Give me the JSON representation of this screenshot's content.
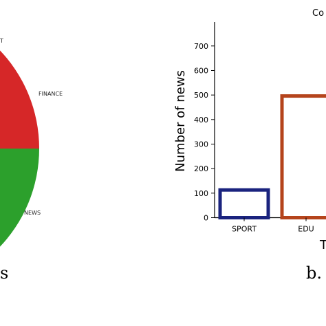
{
  "figure": {
    "caption_left": "s",
    "caption_right": "b."
  },
  "chart_data": [
    {
      "type": "pie",
      "categories": [
        "T",
        "FINANCE",
        "NEWS"
      ],
      "values": [
        null,
        null,
        null
      ],
      "colors": {
        "T": "#d62728",
        "FINANCE": "#d62728",
        "NEWS": "#2ca02c"
      },
      "title": "",
      "legend": "none",
      "labels_visible": [
        "T",
        "FINANCE",
        "NEWS"
      ]
    },
    {
      "type": "bar",
      "title": "Co",
      "xlabel": "T",
      "ylabel": "Number of news",
      "categories": [
        "SPORT",
        "EDU"
      ],
      "values": [
        113,
        496
      ],
      "ylim": [
        0,
        790
      ],
      "yticks": [
        0,
        100,
        200,
        300,
        400,
        500,
        600,
        700
      ],
      "grid": false,
      "legend": "none",
      "bar_fill": "none",
      "bar_edge_colors": [
        "#1a237e",
        "#b5441c"
      ]
    }
  ]
}
